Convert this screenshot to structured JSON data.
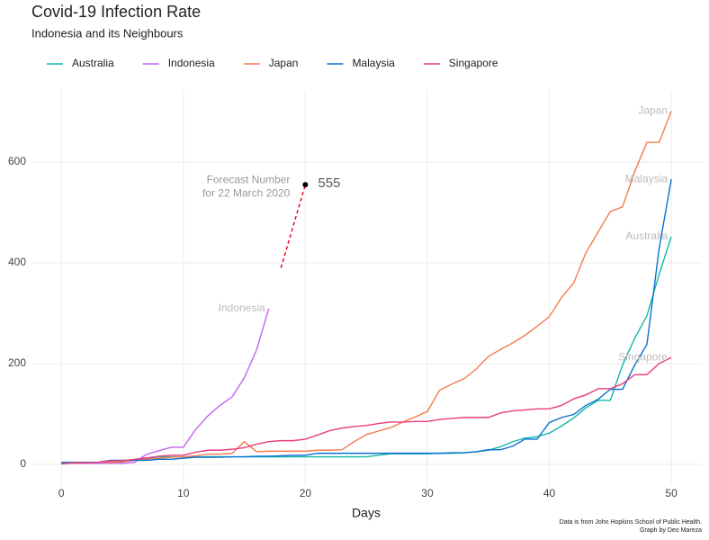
{
  "chart_data": {
    "type": "line",
    "title": "Covid-19 Infection Rate",
    "subtitle": "Indonesia and its Neighbours",
    "x_label": "Days",
    "caption": [
      "Data is from John Hopkins School of Public Health.",
      "Graph by Deo Mareza"
    ],
    "x": [
      0,
      1,
      2,
      3,
      4,
      5,
      6,
      7,
      8,
      9,
      10,
      11,
      12,
      13,
      14,
      15,
      16,
      17,
      18,
      19,
      20,
      21,
      22,
      23,
      24,
      25,
      26,
      27,
      28,
      29,
      30,
      31,
      32,
      33,
      34,
      35,
      36,
      37,
      38,
      39,
      40,
      41,
      42,
      43,
      44,
      45,
      46,
      47,
      48,
      49,
      50
    ],
    "series": [
      {
        "name": "Australia",
        "color": "#12b8a6",
        "values": [
          4,
          4,
          4,
          4,
          5,
          5,
          9,
          12,
          15,
          15,
          15,
          15,
          15,
          15,
          15,
          15,
          15,
          15,
          15,
          15,
          15,
          15,
          15,
          15,
          15,
          15,
          18,
          21,
          21,
          21,
          21,
          22,
          22,
          23,
          25,
          28,
          35,
          45,
          52,
          55,
          62,
          76,
          92,
          112,
          127,
          127,
          197,
          250,
          295,
          377,
          452
        ]
      },
      {
        "name": "Indonesia",
        "color": "#c264f2",
        "values": [
          2,
          2,
          2,
          2,
          2,
          2,
          4,
          20,
          27,
          34,
          34,
          69,
          96,
          117,
          134,
          172,
          227,
          309,
          null,
          null,
          null,
          null,
          null,
          null,
          null,
          null,
          null,
          null,
          null,
          null,
          null,
          null,
          null,
          null,
          null,
          null,
          null,
          null,
          null,
          null,
          null,
          null,
          null,
          null,
          null,
          null,
          null,
          null,
          null,
          null,
          null
        ]
      },
      {
        "name": "Japan",
        "color": "#f47c4f",
        "values": [
          2,
          2,
          3,
          4,
          4,
          5,
          8,
          10,
          12,
          14,
          15,
          17,
          20,
          20,
          22,
          45,
          25,
          26,
          26,
          26,
          26,
          28,
          28,
          29,
          45,
          59,
          66,
          73,
          84,
          94,
          105,
          147,
          159,
          170,
          189,
          214,
          228,
          241,
          256,
          274,
          293,
          331,
          360,
          420,
          461,
          502,
          511,
          581,
          639,
          639,
          701
        ]
      },
      {
        "name": "Malaysia",
        "color": "#0a6fd1",
        "values": [
          3,
          4,
          4,
          4,
          8,
          8,
          8,
          8,
          10,
          10,
          12,
          14,
          14,
          14,
          15,
          15,
          16,
          16,
          17,
          18,
          18,
          22,
          22,
          22,
          22,
          22,
          22,
          22,
          22,
          22,
          22,
          22,
          23,
          23,
          25,
          29,
          29,
          36,
          50,
          50,
          83,
          93,
          99,
          117,
          129,
          149,
          149,
          197,
          238,
          428,
          566
        ]
      },
      {
        "name": "Singapore",
        "color": "#ea3d7b",
        "values": [
          1,
          3,
          3,
          4,
          7,
          7,
          10,
          13,
          16,
          18,
          18,
          24,
          28,
          28,
          30,
          33,
          40,
          45,
          47,
          47,
          50,
          58,
          67,
          72,
          75,
          77,
          81,
          84,
          84,
          85,
          85,
          89,
          91,
          93,
          93,
          93,
          102,
          106,
          108,
          110,
          110,
          117,
          130,
          138,
          150,
          150,
          160,
          178,
          178,
          200,
          212
        ]
      }
    ],
    "forecast": {
      "lines": [
        "Forecast Number",
        "for 22 March 2020"
      ],
      "x": [
        18,
        20
      ],
      "y": [
        390,
        555
      ],
      "color": "#e0001b"
    },
    "xlim": [
      -2.45,
      52.5
    ],
    "ylim": [
      -43,
      743
    ],
    "xticks": [
      0,
      10,
      20,
      30,
      40,
      50
    ],
    "yticks": [
      0,
      200,
      400,
      600
    ],
    "grid": true
  }
}
